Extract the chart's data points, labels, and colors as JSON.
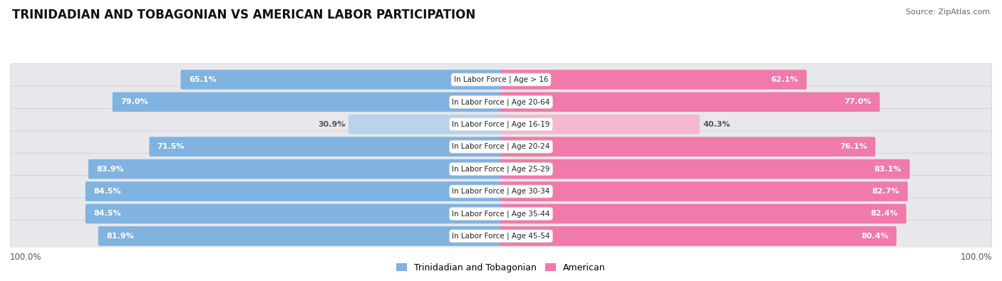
{
  "title": "TRINIDADIAN AND TOBAGONIAN VS AMERICAN LABOR PARTICIPATION",
  "source": "Source: ZipAtlas.com",
  "categories": [
    "In Labor Force | Age > 16",
    "In Labor Force | Age 20-64",
    "In Labor Force | Age 16-19",
    "In Labor Force | Age 20-24",
    "In Labor Force | Age 25-29",
    "In Labor Force | Age 30-34",
    "In Labor Force | Age 35-44",
    "In Labor Force | Age 45-54"
  ],
  "trinidadian": [
    65.1,
    79.0,
    30.9,
    71.5,
    83.9,
    84.5,
    84.5,
    81.9
  ],
  "american": [
    62.1,
    77.0,
    40.3,
    76.1,
    83.1,
    82.7,
    82.4,
    80.4
  ],
  "trin_color": "#80b3e0",
  "trin_color_light": "#b8d4ed",
  "amer_color": "#f07aaa",
  "amer_color_light": "#f5b8ce",
  "bg_color": "#ffffff",
  "row_bg": "#e8e8ec",
  "max_val": 100.0,
  "legend_trin": "Trinidadian and Tobagonian",
  "legend_amer": "American",
  "bottom_label": "100.0%",
  "figwidth": 14.06,
  "figheight": 3.95,
  "title_fontsize": 12,
  "source_fontsize": 8,
  "value_fontsize": 8,
  "label_fontsize": 7.5
}
